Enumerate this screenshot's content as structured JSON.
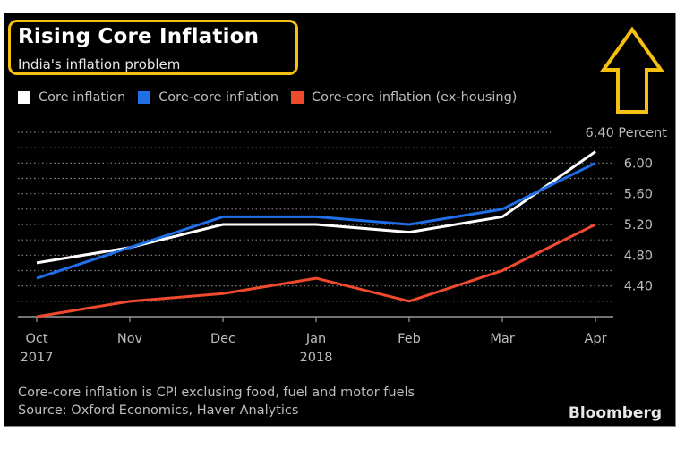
{
  "header": {
    "title": "Rising Core Inflation",
    "subtitle": "India's inflation problem",
    "highlight_color": "#f5c010",
    "annotation_icon": "up-arrow-icon"
  },
  "legend": [
    {
      "label": "Core inflation",
      "color": "#ffffff"
    },
    {
      "label": "Core-core inflation",
      "color": "#1f6fe8"
    },
    {
      "label": "Core-core inflation (ex-housing)",
      "color": "#f04a2e"
    }
  ],
  "footer": {
    "note": "Core-core inflation is CPI exclusing food, fuel and motor fuels",
    "source": "Source: Oxford Economics, Haver Analytics",
    "brand": "Bloomberg"
  },
  "chart_data": {
    "type": "line",
    "title": "Rising Core Inflation",
    "subtitle": "India's inflation problem",
    "xlabel": "",
    "ylabel": "Percent",
    "categories": [
      "Oct 2017",
      "Nov",
      "Dec",
      "Jan 2018",
      "Feb",
      "Mar",
      "Apr"
    ],
    "x_tick_labels": [
      {
        "line1": "Oct",
        "line2": "2017"
      },
      {
        "line1": "Nov",
        "line2": ""
      },
      {
        "line1": "Dec",
        "line2": ""
      },
      {
        "line1": "Jan",
        "line2": "2018"
      },
      {
        "line1": "Feb",
        "line2": ""
      },
      {
        "line1": "Mar",
        "line2": ""
      },
      {
        "line1": "Apr",
        "line2": ""
      }
    ],
    "y_ticks": [
      {
        "value": 6.4,
        "label": "6.40 Percent"
      },
      {
        "value": 6.0,
        "label": "6.00"
      },
      {
        "value": 5.6,
        "label": "5.60"
      },
      {
        "value": 5.2,
        "label": "5.20"
      },
      {
        "value": 4.8,
        "label": "4.80"
      },
      {
        "value": 4.4,
        "label": "4.40"
      }
    ],
    "ylim": [
      4.0,
      6.4
    ],
    "grid": true,
    "grid_step": 0.2,
    "legend_position": "top-left",
    "series": [
      {
        "name": "Core inflation",
        "color": "#ffffff",
        "values": [
          4.7,
          4.9,
          5.2,
          5.2,
          5.1,
          5.3,
          6.15
        ]
      },
      {
        "name": "Core-core inflation",
        "color": "#1f6fe8",
        "values": [
          4.5,
          4.9,
          5.3,
          5.3,
          5.2,
          5.4,
          6.0
        ]
      },
      {
        "name": "Core-core inflation (ex-housing)",
        "color": "#f04a2e",
        "values": [
          4.0,
          4.2,
          4.3,
          4.5,
          4.2,
          4.6,
          5.2
        ]
      }
    ]
  }
}
